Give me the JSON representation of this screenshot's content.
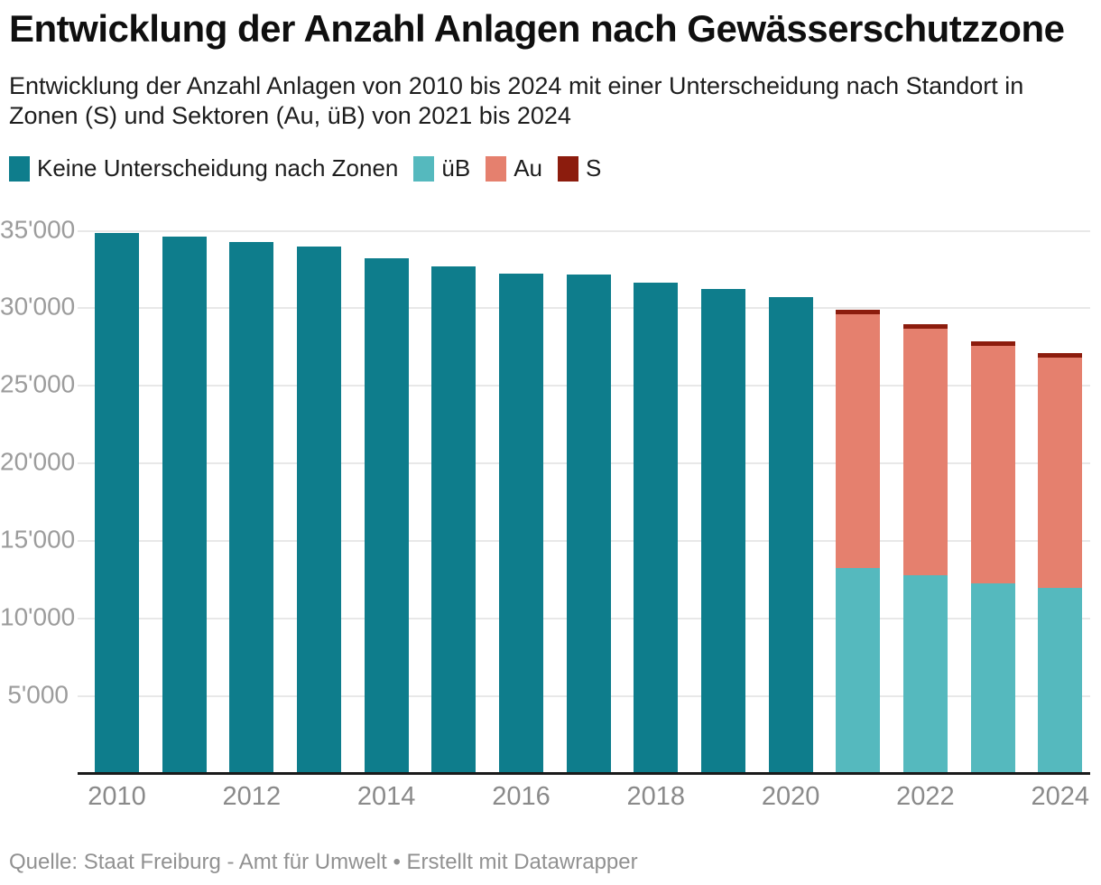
{
  "header": {
    "title": "Entwicklung der Anzahl Anlagen nach Gewässerschutzzone",
    "subtitle": "Entwicklung der Anzahl Anlagen von 2010 bis 2024 mit einer Unterscheidung nach Standort in Zonen (S) und Sektoren (Au, üB) von 2021 bis 2024"
  },
  "legend": {
    "items": [
      {
        "label": "Keine Unterscheidung nach Zonen",
        "color": "#0e7d8c"
      },
      {
        "label": "üB",
        "color": "#55b9be"
      },
      {
        "label": "Au",
        "color": "#e5806e"
      },
      {
        "label": "S",
        "color": "#8c1c0d"
      }
    ]
  },
  "chart_data": {
    "type": "bar",
    "stacked": true,
    "title": "Entwicklung der Anzahl Anlagen nach Gewässerschutzzone",
    "xlabel": "",
    "ylabel": "",
    "ylim": [
      0,
      35000
    ],
    "grid": true,
    "legend_position": "top",
    "categories": [
      2010,
      2011,
      2012,
      2013,
      2014,
      2015,
      2016,
      2017,
      2018,
      2019,
      2020,
      2021,
      2022,
      2023,
      2024
    ],
    "series": [
      {
        "name": "Keine Unterscheidung nach Zonen",
        "color": "#0e7d8c",
        "values": [
          34850,
          34600,
          34250,
          34000,
          33200,
          32700,
          32250,
          32200,
          31650,
          31250,
          30700,
          null,
          null,
          null,
          null
        ]
      },
      {
        "name": "üB",
        "color": "#55b9be",
        "values": [
          null,
          null,
          null,
          null,
          null,
          null,
          null,
          null,
          null,
          null,
          null,
          13250,
          12800,
          12300,
          12000
        ]
      },
      {
        "name": "Au",
        "color": "#e5806e",
        "values": [
          null,
          null,
          null,
          null,
          null,
          null,
          null,
          null,
          null,
          null,
          null,
          16350,
          15900,
          15300,
          14800
        ]
      },
      {
        "name": "S",
        "color": "#8c1c0d",
        "values": [
          null,
          null,
          null,
          null,
          null,
          null,
          null,
          null,
          null,
          null,
          null,
          300,
          300,
          300,
          300
        ]
      }
    ],
    "ytick_labels": [
      "5'000",
      "10'000",
      "15'000",
      "20'000",
      "25'000",
      "30'000",
      "35'000"
    ],
    "ytick_values": [
      5000,
      10000,
      15000,
      20000,
      25000,
      30000,
      35000
    ],
    "xtick_labels": [
      "2010",
      "2012",
      "2014",
      "2016",
      "2018",
      "2020",
      "2022",
      "2024"
    ]
  },
  "footer": {
    "source": "Quelle: Staat Freiburg - Amt für Umwelt • Erstellt mit Datawrapper"
  }
}
